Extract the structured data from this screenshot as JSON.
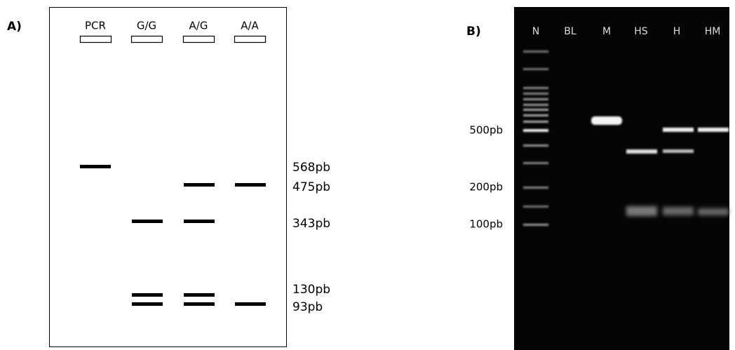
{
  "panel_a": {
    "label": "A)",
    "lanes": [
      "PCR",
      "G/G",
      "A/G",
      "A/A"
    ],
    "sizes": [
      "568pb",
      "475pb",
      "343pb",
      "130pb",
      "93pb"
    ]
  },
  "panel_b": {
    "label": "B)",
    "lanes": [
      "N",
      "BL",
      "M",
      "HS",
      "H",
      "HM"
    ],
    "sizes": [
      "500pb",
      "200pb",
      "100pb"
    ]
  }
}
